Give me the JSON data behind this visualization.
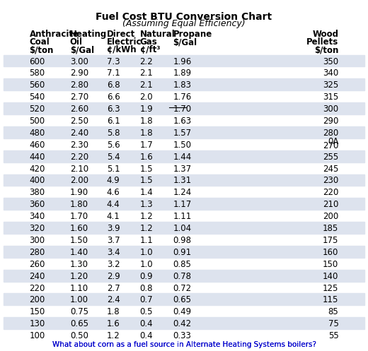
{
  "title": "Fuel Cost BTU Conversion Chart",
  "subtitle": "(Assuming Equal Efficiency)",
  "columns": [
    "Anthracite\nCoal\n$/ton",
    "Heating\nOil\n$/Gal",
    "Direct\nElectric\n¢/kWh",
    "Natural\nGas\n¢/ft³",
    "Propane\n$/Gal",
    "",
    "Wood\nPellets\n$/ton"
  ],
  "col_header_lines": [
    [
      "Anthracite",
      "Coal",
      "$/ton"
    ],
    [
      "Heating",
      "Oil",
      "$/Gal"
    ],
    [
      "Direct",
      "Electric",
      "¢/kWh"
    ],
    [
      "Natural",
      "Gas",
      "¢/ft³"
    ],
    [
      "Propane",
      "$/Gal",
      ""
    ],
    [
      "",
      "",
      ""
    ],
    [
      "Wood",
      "Pellets",
      "$/ton"
    ]
  ],
  "rows": [
    [
      "600",
      "3.00",
      "7.3",
      "2.2",
      "1.96",
      "",
      "350"
    ],
    [
      "580",
      "2.90",
      "7.1",
      "2.1",
      "1.89",
      "",
      "340"
    ],
    [
      "560",
      "2.80",
      "6.8",
      "2.1",
      "1.83",
      "",
      "325"
    ],
    [
      "540",
      "2.70",
      "6.6",
      "2.0",
      "1.76",
      "",
      "315"
    ],
    [
      "520",
      "2.60",
      "6.3",
      "1.9",
      "1.70",
      "",
      "300"
    ],
    [
      "500",
      "2.50",
      "6.1",
      "1.8",
      "1.63",
      "",
      "290"
    ],
    [
      "480",
      "2.40",
      "5.8",
      "1.8",
      "1.57",
      "",
      "280"
    ],
    [
      "460",
      "2.30",
      "5.6",
      "1.7",
      "1.50",
      "",
      "0A\n270"
    ],
    [
      "440",
      "2.20",
      "5.4",
      "1.6",
      "1.44",
      "",
      "255"
    ],
    [
      "420",
      "2.10",
      "5.1",
      "1.5",
      "1.37",
      "",
      "245"
    ],
    [
      "400",
      "2.00",
      "4.9",
      "1.5",
      "1.31",
      "",
      "230"
    ],
    [
      "380",
      "1.90",
      "4.6",
      "1.4",
      "1.24",
      "",
      "220"
    ],
    [
      "360",
      "1.80",
      "4.4",
      "1.3",
      "1.17",
      "",
      "210"
    ],
    [
      "340",
      "1.70",
      "4.1",
      "1.2",
      "1.11",
      "",
      "200"
    ],
    [
      "320",
      "1.60",
      "3.9",
      "1.2",
      "1.04",
      "",
      "185"
    ],
    [
      "300",
      "1.50",
      "3.7",
      "1.1",
      "0.98",
      "",
      "175"
    ],
    [
      "280",
      "1.40",
      "3.4",
      "1.0",
      "0.91",
      "",
      "160"
    ],
    [
      "260",
      "1.30",
      "3.2",
      "1.0",
      "0.85",
      "",
      "150"
    ],
    [
      "240",
      "1.20",
      "2.9",
      "0.9",
      "0.78",
      "",
      "140"
    ],
    [
      "220",
      "1.10",
      "2.7",
      "0.8",
      "0.72",
      "",
      "125"
    ],
    [
      "200",
      "1.00",
      "2.4",
      "0.7",
      "0.65",
      "",
      "115"
    ],
    [
      "150",
      "0.75",
      "1.8",
      "0.5",
      "0.49",
      "",
      "85"
    ],
    [
      "130",
      "0.65",
      "1.6",
      "0.4",
      "0.42",
      "",
      "75"
    ],
    [
      "100",
      "0.50",
      "1.2",
      "0.4",
      "0.33",
      "",
      "55"
    ]
  ],
  "striped_rows": [
    0,
    2,
    4,
    6,
    8,
    10,
    12,
    14,
    16,
    18,
    20,
    22
  ],
  "stripe_color": "#dde3ee",
  "bg_color": "#ffffff",
  "link_text": "What about corn as a fuel source in Alternate Heating Systems boilers?",
  "link_color": "#0000cc",
  "strikethrough_row": 4,
  "strikethrough_col": 4
}
